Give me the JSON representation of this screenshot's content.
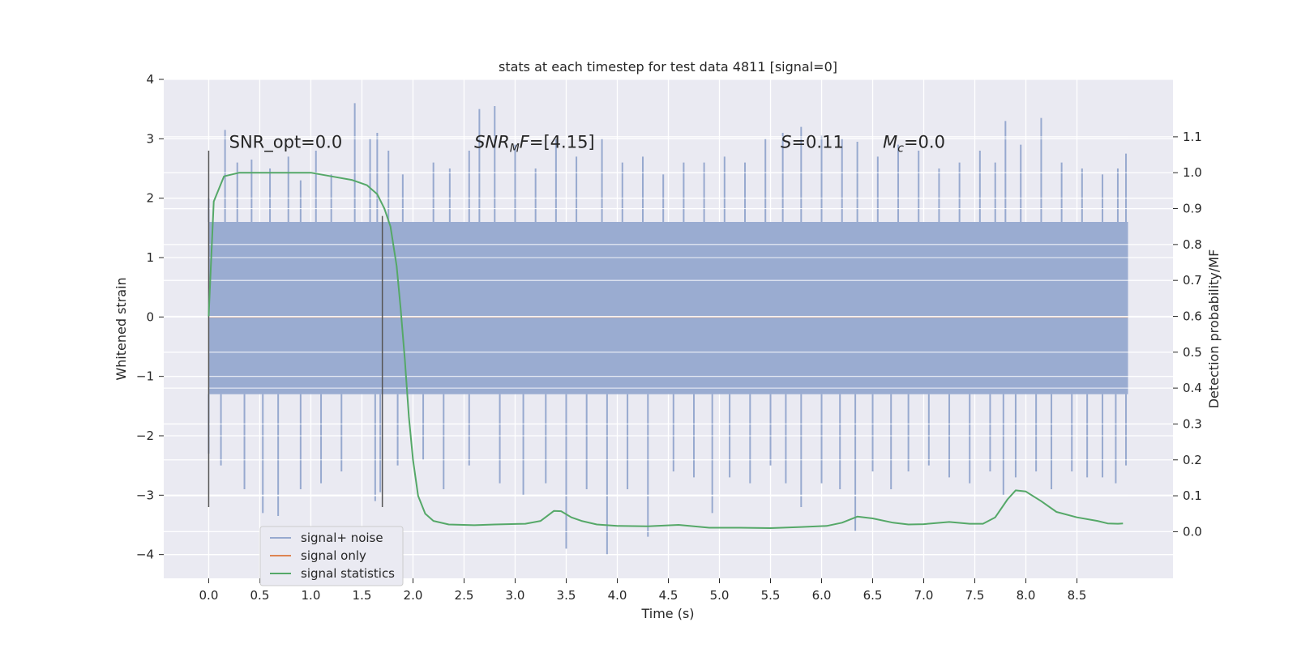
{
  "chart_data": {
    "type": "line",
    "title": "stats at each timestep for test data 4811 [signal=0]",
    "xlabel": "Time (s)",
    "ylabel": "Whitened strain",
    "y2label": "Detection probability/MF",
    "xlim": [
      -0.44,
      9.44
    ],
    "ylim": [
      -4.4,
      4.0
    ],
    "y2lim": [
      -0.13,
      1.26
    ],
    "x_ticks": [
      0.0,
      0.5,
      1.0,
      1.5,
      2.0,
      2.5,
      3.0,
      3.5,
      4.0,
      4.5,
      5.0,
      5.5,
      6.0,
      6.5,
      7.0,
      7.5,
      8.0,
      8.5
    ],
    "x_tick_labels": [
      "0.0",
      "0.5",
      "1.0",
      "1.5",
      "2.0",
      "2.5",
      "3.0",
      "3.5",
      "4.0",
      "4.5",
      "5.0",
      "5.5",
      "6.0",
      "6.5",
      "7.0",
      "7.5",
      "8.0",
      "8.5"
    ],
    "y_ticks": [
      4,
      3,
      2,
      1,
      0,
      -1,
      -2,
      -3,
      -4
    ],
    "y_tick_labels": [
      "4",
      "3",
      "2",
      "1",
      "0",
      "−1",
      "−2",
      "−3",
      "−4"
    ],
    "y2_ticks": [
      1.1,
      1.0,
      0.9,
      0.8,
      0.7,
      0.6,
      0.5,
      0.4,
      0.3,
      0.2,
      0.1,
      0.0
    ],
    "y2_tick_labels": [
      "1.1",
      "1.0",
      "0.9",
      "0.8",
      "0.7",
      "0.6",
      "0.5",
      "0.4",
      "0.3",
      "0.2",
      "0.1",
      "0.0"
    ],
    "grid": true,
    "legend_position": "lower-left",
    "annotations": [
      {
        "x": 0.2,
        "y": 2.85,
        "parts": [
          {
            "t": "SNR_opt=0.0",
            "i": false
          }
        ]
      },
      {
        "x": 2.6,
        "y": 2.85,
        "parts": [
          {
            "t": "SNR",
            "i": true
          },
          {
            "t": "M",
            "i": true,
            "sub": true
          },
          {
            "t": "F",
            "i": true
          },
          {
            "t": "=[4.15]",
            "i": false
          }
        ]
      },
      {
        "x": 5.6,
        "y": 2.85,
        "parts": [
          {
            "t": "S",
            "i": true
          },
          {
            "t": "=0.11",
            "i": false
          }
        ]
      },
      {
        "x": 6.6,
        "y": 2.85,
        "parts": [
          {
            "t": "M",
            "i": true
          },
          {
            "t": "c",
            "i": true,
            "sub": true
          },
          {
            "t": "=0.0",
            "i": false
          }
        ]
      }
    ],
    "vlines": [
      {
        "x": 0.0,
        "ymin": -3.2,
        "ymax": 2.8
      },
      {
        "x": 1.7,
        "ymin": -3.2,
        "ymax": 1.7
      }
    ],
    "series": [
      {
        "name": "signal+ noise",
        "color": "#97a9cf",
        "x_range": [
          0.0,
          9.0
        ],
        "band": {
          "upper": 1.6,
          "lower": -1.3
        },
        "peaks": [
          {
            "x": 0.0,
            "y": 2.0
          },
          {
            "x": 0.16,
            "y": 3.15
          },
          {
            "x": 0.28,
            "y": 2.6
          },
          {
            "x": 0.42,
            "y": 2.65
          },
          {
            "x": 0.6,
            "y": 2.5
          },
          {
            "x": 0.78,
            "y": 2.7
          },
          {
            "x": 0.9,
            "y": 2.3
          },
          {
            "x": 1.05,
            "y": 2.8
          },
          {
            "x": 1.2,
            "y": 2.4
          },
          {
            "x": 1.43,
            "y": 3.6
          },
          {
            "x": 1.58,
            "y": 3.0
          },
          {
            "x": 1.65,
            "y": 3.1
          },
          {
            "x": 1.76,
            "y": 2.8
          },
          {
            "x": 1.9,
            "y": 2.4
          },
          {
            "x": 2.2,
            "y": 2.6
          },
          {
            "x": 2.36,
            "y": 2.5
          },
          {
            "x": 2.55,
            "y": 2.8
          },
          {
            "x": 2.65,
            "y": 3.5
          },
          {
            "x": 2.8,
            "y": 3.55
          },
          {
            "x": 3.0,
            "y": 2.9
          },
          {
            "x": 3.2,
            "y": 2.5
          },
          {
            "x": 3.4,
            "y": 3.0
          },
          {
            "x": 3.6,
            "y": 2.7
          },
          {
            "x": 3.85,
            "y": 3.0
          },
          {
            "x": 4.05,
            "y": 2.6
          },
          {
            "x": 4.25,
            "y": 2.7
          },
          {
            "x": 4.45,
            "y": 2.4
          },
          {
            "x": 4.65,
            "y": 2.6
          },
          {
            "x": 4.85,
            "y": 2.6
          },
          {
            "x": 5.05,
            "y": 2.7
          },
          {
            "x": 5.25,
            "y": 2.6
          },
          {
            "x": 5.45,
            "y": 3.0
          },
          {
            "x": 5.62,
            "y": 3.1
          },
          {
            "x": 5.8,
            "y": 3.2
          },
          {
            "x": 6.0,
            "y": 3.05
          },
          {
            "x": 6.2,
            "y": 3.0
          },
          {
            "x": 6.35,
            "y": 2.95
          },
          {
            "x": 6.55,
            "y": 2.7
          },
          {
            "x": 6.75,
            "y": 2.9
          },
          {
            "x": 6.95,
            "y": 2.8
          },
          {
            "x": 7.15,
            "y": 2.5
          },
          {
            "x": 7.35,
            "y": 2.6
          },
          {
            "x": 7.55,
            "y": 2.8
          },
          {
            "x": 7.7,
            "y": 2.6
          },
          {
            "x": 7.8,
            "y": 3.3
          },
          {
            "x": 7.95,
            "y": 2.9
          },
          {
            "x": 8.15,
            "y": 3.35
          },
          {
            "x": 8.35,
            "y": 2.6
          },
          {
            "x": 8.55,
            "y": 2.5
          },
          {
            "x": 8.75,
            "y": 2.4
          },
          {
            "x": 8.9,
            "y": 2.5
          },
          {
            "x": 8.98,
            "y": 2.75
          }
        ],
        "troughs": [
          {
            "x": 0.0,
            "y": -2.3
          },
          {
            "x": 0.12,
            "y": -2.5
          },
          {
            "x": 0.35,
            "y": -2.9
          },
          {
            "x": 0.53,
            "y": -3.3
          },
          {
            "x": 0.68,
            "y": -3.35
          },
          {
            "x": 0.9,
            "y": -2.9
          },
          {
            "x": 1.1,
            "y": -2.8
          },
          {
            "x": 1.3,
            "y": -2.6
          },
          {
            "x": 1.63,
            "y": -3.1
          },
          {
            "x": 1.68,
            "y": -2.95
          },
          {
            "x": 1.85,
            "y": -2.5
          },
          {
            "x": 2.1,
            "y": -2.4
          },
          {
            "x": 2.3,
            "y": -2.9
          },
          {
            "x": 2.55,
            "y": -2.5
          },
          {
            "x": 2.85,
            "y": -2.8
          },
          {
            "x": 3.08,
            "y": -3.0
          },
          {
            "x": 3.3,
            "y": -2.8
          },
          {
            "x": 3.5,
            "y": -3.9
          },
          {
            "x": 3.7,
            "y": -2.9
          },
          {
            "x": 3.9,
            "y": -4.0
          },
          {
            "x": 4.1,
            "y": -2.9
          },
          {
            "x": 4.3,
            "y": -3.7
          },
          {
            "x": 4.55,
            "y": -2.6
          },
          {
            "x": 4.75,
            "y": -2.7
          },
          {
            "x": 4.93,
            "y": -3.3
          },
          {
            "x": 5.1,
            "y": -2.7
          },
          {
            "x": 5.3,
            "y": -2.8
          },
          {
            "x": 5.5,
            "y": -2.5
          },
          {
            "x": 5.65,
            "y": -2.8
          },
          {
            "x": 5.8,
            "y": -3.2
          },
          {
            "x": 6.0,
            "y": -2.8
          },
          {
            "x": 6.18,
            "y": -2.9
          },
          {
            "x": 6.33,
            "y": -3.6
          },
          {
            "x": 6.5,
            "y": -2.6
          },
          {
            "x": 6.68,
            "y": -2.9
          },
          {
            "x": 6.85,
            "y": -2.6
          },
          {
            "x": 7.05,
            "y": -2.5
          },
          {
            "x": 7.25,
            "y": -2.7
          },
          {
            "x": 7.45,
            "y": -2.8
          },
          {
            "x": 7.65,
            "y": -2.6
          },
          {
            "x": 7.78,
            "y": -3.0
          },
          {
            "x": 7.9,
            "y": -2.7
          },
          {
            "x": 8.1,
            "y": -2.6
          },
          {
            "x": 8.25,
            "y": -2.9
          },
          {
            "x": 8.45,
            "y": -2.6
          },
          {
            "x": 8.6,
            "y": -2.7
          },
          {
            "x": 8.75,
            "y": -2.7
          },
          {
            "x": 8.88,
            "y": -2.8
          },
          {
            "x": 8.98,
            "y": -2.5
          }
        ]
      },
      {
        "name": "signal only",
        "color": "#dd8452",
        "points": [
          [
            0.0,
            0.0
          ],
          [
            9.0,
            0.0
          ]
        ]
      },
      {
        "name": "signal statistics",
        "color": "#55a868",
        "axis": "right",
        "points": [
          [
            0.0,
            0.6
          ],
          [
            0.05,
            0.92
          ],
          [
            0.15,
            0.99
          ],
          [
            0.3,
            1.0
          ],
          [
            0.6,
            1.0
          ],
          [
            1.0,
            1.0
          ],
          [
            1.2,
            0.99
          ],
          [
            1.4,
            0.98
          ],
          [
            1.55,
            0.965
          ],
          [
            1.65,
            0.94
          ],
          [
            1.72,
            0.9
          ],
          [
            1.78,
            0.85
          ],
          [
            1.84,
            0.74
          ],
          [
            1.88,
            0.62
          ],
          [
            1.92,
            0.48
          ],
          [
            1.96,
            0.32
          ],
          [
            2.0,
            0.2
          ],
          [
            2.05,
            0.1
          ],
          [
            2.12,
            0.05
          ],
          [
            2.2,
            0.03
          ],
          [
            2.35,
            0.02
          ],
          [
            2.6,
            0.018
          ],
          [
            2.8,
            0.02
          ],
          [
            3.1,
            0.022
          ],
          [
            3.25,
            0.03
          ],
          [
            3.38,
            0.058
          ],
          [
            3.45,
            0.057
          ],
          [
            3.55,
            0.04
          ],
          [
            3.65,
            0.03
          ],
          [
            3.8,
            0.02
          ],
          [
            4.0,
            0.016
          ],
          [
            4.3,
            0.015
          ],
          [
            4.6,
            0.019
          ],
          [
            4.9,
            0.011
          ],
          [
            5.2,
            0.011
          ],
          [
            5.5,
            0.01
          ],
          [
            5.8,
            0.013
          ],
          [
            6.05,
            0.016
          ],
          [
            6.2,
            0.025
          ],
          [
            6.35,
            0.042
          ],
          [
            6.5,
            0.037
          ],
          [
            6.7,
            0.025
          ],
          [
            6.85,
            0.02
          ],
          [
            7.0,
            0.021
          ],
          [
            7.25,
            0.027
          ],
          [
            7.45,
            0.022
          ],
          [
            7.58,
            0.022
          ],
          [
            7.7,
            0.04
          ],
          [
            7.82,
            0.09
          ],
          [
            7.9,
            0.115
          ],
          [
            8.0,
            0.112
          ],
          [
            8.15,
            0.085
          ],
          [
            8.3,
            0.055
          ],
          [
            8.5,
            0.04
          ],
          [
            8.7,
            0.03
          ],
          [
            8.8,
            0.023
          ],
          [
            8.9,
            0.022
          ],
          [
            8.95,
            0.023
          ]
        ]
      }
    ]
  }
}
